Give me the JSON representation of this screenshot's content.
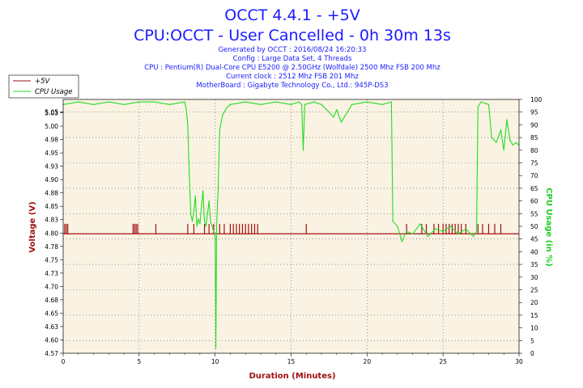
{
  "header": {
    "title1": "OCCT 4.4.1 - +5V",
    "title2": "CPU:OCCT - User Cancelled - 0h 30m 13s",
    "info": [
      "Generated by OCCT : 2016/08/24 16:20:33",
      "Config : Large Data Set, 4 Threads",
      "CPU : Pentium(R) Dual-Core CPU E5200 @ 2.50GHz (Wolfdale) 2500 Mhz FSB 200 Mhz",
      "Current clock : 2512 Mhz FSB 201 Mhz",
      "MotherBoard : Gigabyte Technology Co., Ltd.: 945P-DS3"
    ]
  },
  "colors": {
    "voltage": "#a01010",
    "cpu": "#22dd22",
    "plot_bg": "#faf3e3",
    "grid": "#555555"
  },
  "chart_data": {
    "type": "line",
    "xlabel": "Duration (Minutes)",
    "ylabel_left": "Voltage (V)",
    "ylabel_right": "CPU Usage (in %)",
    "xlim": [
      0,
      30
    ],
    "x_ticks": [
      "0",
      "5",
      "10",
      "15",
      "20",
      "25",
      "30"
    ],
    "ylim_left": [
      4.57,
      5.08
    ],
    "y_left_ticks": [
      "5.05",
      "5.03",
      "5.00",
      "4.98",
      "4.95",
      "4.93",
      "4.90",
      "4.88",
      "4.85",
      "4.83",
      "4.80",
      "4.78",
      "4.75",
      "4.73",
      "4.70",
      "4.68",
      "4.65",
      "4.63",
      "4.60",
      "4.57"
    ],
    "ylim_right": [
      0,
      100
    ],
    "y_right_ticks": [
      "100",
      "95",
      "90",
      "85",
      "80",
      "75",
      "70",
      "65",
      "60",
      "55",
      "50",
      "45",
      "40",
      "35",
      "30",
      "25",
      "20",
      "15",
      "10",
      "5",
      "0"
    ],
    "legend": {
      "placement": "top-left",
      "entries": [
        "+5V",
        "CPU Usage"
      ]
    },
    "grid": true,
    "series": [
      {
        "name": "+5V",
        "baseline": 4.81,
        "spike_value": 4.83,
        "spike_x": [
          0.1,
          0.2,
          0.3,
          4.6,
          4.7,
          4.8,
          4.9,
          6.1,
          8.2,
          8.6,
          9.3,
          9.6,
          9.9,
          10.3,
          10.6,
          11.0,
          11.2,
          11.4,
          11.6,
          11.8,
          12.0,
          12.2,
          12.4,
          12.6,
          12.8,
          16.0,
          22.6,
          23.6,
          23.9,
          24.4,
          24.7,
          25.0,
          25.2,
          25.4,
          25.6,
          25.8,
          26.0,
          26.2,
          26.5,
          27.3,
          27.6,
          28.0,
          28.4,
          28.8
        ]
      },
      {
        "name": "CPU Usage",
        "points": [
          [
            0.0,
            98
          ],
          [
            1.0,
            99
          ],
          [
            2.0,
            98
          ],
          [
            3.0,
            99
          ],
          [
            4.0,
            98
          ],
          [
            5.0,
            99
          ],
          [
            6.0,
            99
          ],
          [
            7.0,
            98
          ],
          [
            8.0,
            99
          ],
          [
            8.1,
            96
          ],
          [
            8.2,
            90
          ],
          [
            8.3,
            70
          ],
          [
            8.4,
            55
          ],
          [
            8.5,
            52
          ],
          [
            8.6,
            56
          ],
          [
            8.7,
            62
          ],
          [
            8.8,
            50
          ],
          [
            8.9,
            53
          ],
          [
            9.0,
            51
          ],
          [
            9.1,
            58
          ],
          [
            9.2,
            64
          ],
          [
            9.3,
            52
          ],
          [
            9.4,
            50
          ],
          [
            9.5,
            55
          ],
          [
            9.6,
            60
          ],
          [
            9.7,
            52
          ],
          [
            9.8,
            50
          ],
          [
            9.9,
            48
          ],
          [
            10.0,
            46
          ],
          [
            10.05,
            2
          ],
          [
            10.1,
            50
          ],
          [
            10.2,
            65
          ],
          [
            10.3,
            88
          ],
          [
            10.5,
            94
          ],
          [
            10.8,
            97
          ],
          [
            11.0,
            98
          ],
          [
            12.0,
            99
          ],
          [
            13.0,
            98
          ],
          [
            14.0,
            99
          ],
          [
            15.0,
            98
          ],
          [
            15.5,
            99
          ],
          [
            15.7,
            98
          ],
          [
            15.8,
            80
          ],
          [
            15.9,
            98
          ],
          [
            16.5,
            99
          ],
          [
            17.0,
            98
          ],
          [
            17.5,
            95
          ],
          [
            17.8,
            93
          ],
          [
            18.0,
            96
          ],
          [
            18.3,
            91
          ],
          [
            18.6,
            94
          ],
          [
            19.0,
            98
          ],
          [
            20.0,
            99
          ],
          [
            21.0,
            98
          ],
          [
            21.6,
            99
          ],
          [
            21.7,
            52
          ],
          [
            22.0,
            50
          ],
          [
            22.3,
            44
          ],
          [
            22.6,
            48
          ],
          [
            23.0,
            47
          ],
          [
            23.5,
            51
          ],
          [
            24.0,
            46
          ],
          [
            24.5,
            49
          ],
          [
            25.0,
            48
          ],
          [
            25.5,
            50
          ],
          [
            26.0,
            47
          ],
          [
            26.5,
            49
          ],
          [
            27.0,
            46
          ],
          [
            27.2,
            48
          ],
          [
            27.3,
            97
          ],
          [
            27.5,
            99
          ],
          [
            28.0,
            98
          ],
          [
            28.2,
            85
          ],
          [
            28.5,
            83
          ],
          [
            28.8,
            88
          ],
          [
            29.0,
            80
          ],
          [
            29.2,
            92
          ],
          [
            29.4,
            84
          ],
          [
            29.6,
            82
          ],
          [
            29.8,
            83
          ],
          [
            30.0,
            82
          ]
        ]
      }
    ]
  }
}
